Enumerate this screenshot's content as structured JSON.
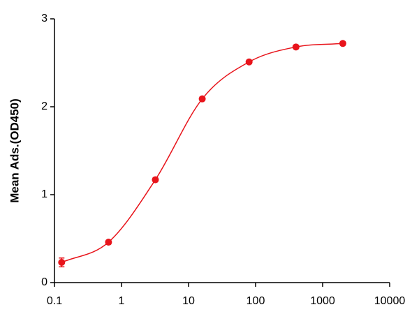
{
  "chart_data": {
    "type": "scatter",
    "y_label": "Mean Ads.(OD450)",
    "x": [
      0.128,
      0.64,
      3.2,
      16,
      80,
      400,
      2000
    ],
    "series": [
      {
        "color": "#e8141b",
        "values": [
          0.23,
          0.46,
          1.17,
          2.09,
          2.51,
          2.68,
          2.72
        ],
        "errors": [
          0.05,
          0.02,
          0.02,
          0.02,
          0.02,
          0.02,
          0.02
        ]
      }
    ],
    "xlim": [
      0.1,
      10000
    ],
    "xticks": [
      0.1,
      1,
      10,
      100,
      1000,
      10000
    ],
    "xscale": "log",
    "ylim": [
      0,
      3
    ],
    "yticks": [
      0,
      1,
      2,
      3
    ],
    "fit_curve": true
  }
}
